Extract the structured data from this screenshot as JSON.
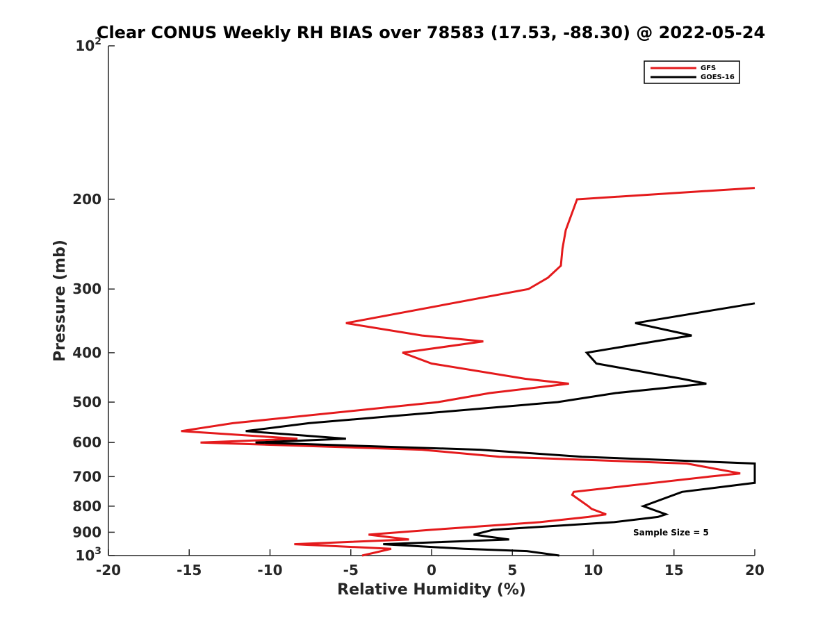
{
  "chart_data": {
    "type": "line",
    "title": "Clear CONUS Weekly RH BIAS over 78583 (17.53, -88.30) @ 2022-05-24",
    "xlabel": "Relative Humidity (%)",
    "ylabel": "Pressure (mb)",
    "xlim": [
      -20,
      20
    ],
    "ylim": [
      100,
      1000
    ],
    "y_scale": "log",
    "y_reversed": true,
    "grid": false,
    "legend_position": "top-right",
    "x_ticks": [
      -20,
      -15,
      -10,
      -5,
      0,
      5,
      10,
      15,
      20
    ],
    "y_ticks": [
      {
        "value": 100,
        "base": "10",
        "exp": "2"
      },
      {
        "value": 200,
        "label": "200"
      },
      {
        "value": 300,
        "label": "300"
      },
      {
        "value": 400,
        "label": "400"
      },
      {
        "value": 500,
        "label": "500"
      },
      {
        "value": 600,
        "label": "600"
      },
      {
        "value": 700,
        "label": "700"
      },
      {
        "value": 800,
        "label": "800"
      },
      {
        "value": 900,
        "label": "900"
      },
      {
        "value": 1000,
        "base": "10",
        "exp": "3"
      }
    ],
    "series": [
      {
        "name": "GFS",
        "color": "#e41a1c",
        "points": [
          [
            20.0,
            190
          ],
          [
            9.0,
            200
          ],
          [
            8.3,
            230
          ],
          [
            8.1,
            250
          ],
          [
            8.0,
            270
          ],
          [
            7.2,
            285
          ],
          [
            6.0,
            300
          ],
          [
            -5.3,
            350
          ],
          [
            -0.6,
            370
          ],
          [
            3.2,
            380
          ],
          [
            -1.8,
            400
          ],
          [
            0.0,
            420
          ],
          [
            5.8,
            450
          ],
          [
            8.5,
            460
          ],
          [
            3.6,
            480
          ],
          [
            0.4,
            500
          ],
          [
            -12.3,
            550
          ],
          [
            -15.5,
            570
          ],
          [
            -8.3,
            590
          ],
          [
            -14.3,
            600
          ],
          [
            -0.6,
            620
          ],
          [
            4.2,
            640
          ],
          [
            15.8,
            660
          ],
          [
            19.1,
            690
          ],
          [
            17.2,
            700
          ],
          [
            8.8,
            750
          ],
          [
            8.7,
            760
          ],
          [
            9.7,
            800
          ],
          [
            9.9,
            810
          ],
          [
            10.8,
            830
          ],
          [
            9.7,
            840
          ],
          [
            6.7,
            860
          ],
          [
            0.0,
            890
          ],
          [
            -3.9,
            910
          ],
          [
            -1.4,
            930
          ],
          [
            -8.5,
            950
          ],
          [
            -2.5,
            970
          ],
          [
            -4.3,
            1000
          ]
        ]
      },
      {
        "name": "GOES-16",
        "color": "#000000",
        "points": [
          [
            20.0,
            320
          ],
          [
            12.6,
            350
          ],
          [
            16.1,
            370
          ],
          [
            13.8,
            380
          ],
          [
            9.6,
            400
          ],
          [
            10.2,
            420
          ],
          [
            15.5,
            450
          ],
          [
            17.0,
            460
          ],
          [
            11.4,
            480
          ],
          [
            7.8,
            500
          ],
          [
            -7.6,
            550
          ],
          [
            -11.5,
            570
          ],
          [
            -5.3,
            590
          ],
          [
            -10.9,
            600
          ],
          [
            3.0,
            620
          ],
          [
            9.3,
            640
          ],
          [
            20.0,
            660
          ],
          [
            20.0,
            720
          ],
          [
            15.5,
            750
          ],
          [
            13.1,
            800
          ],
          [
            14.5,
            830
          ],
          [
            14.0,
            840
          ],
          [
            11.3,
            860
          ],
          [
            3.8,
            890
          ],
          [
            2.6,
            910
          ],
          [
            4.8,
            930
          ],
          [
            -3.0,
            950
          ],
          [
            2.0,
            970
          ],
          [
            5.9,
            980
          ],
          [
            7.9,
            1000
          ]
        ]
      }
    ],
    "annotation": "Sample Size = 5"
  }
}
